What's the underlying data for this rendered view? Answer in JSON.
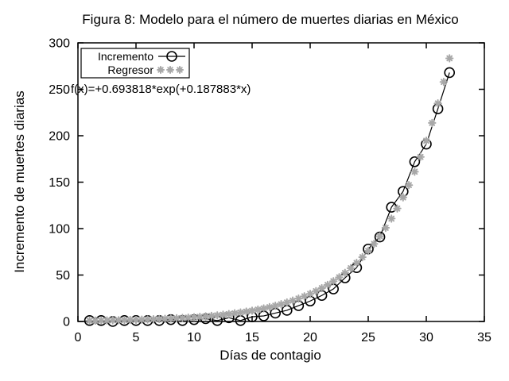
{
  "chart_data": {
    "type": "line",
    "title": "Figura 8: Modelo para el número de muertes diarias en México",
    "xlabel": "Días de contagio",
    "ylabel": "Incremento de muertes diarias",
    "xlim": [
      0,
      35
    ],
    "ylim": [
      0,
      300
    ],
    "xticks": [
      0,
      5,
      10,
      15,
      20,
      25,
      30,
      35
    ],
    "yticks": [
      0,
      50,
      100,
      150,
      200,
      250,
      300
    ],
    "grid": false,
    "legend_position": "top-left",
    "annotation": "f(x)=+0.693818*exp(+0.187883*x)",
    "colors": {
      "foreground": "#000000",
      "regressor": "#a8a8a8",
      "background": "#ffffff"
    },
    "series": [
      {
        "name": "Incremento",
        "style": "linespoints",
        "marker": "open-circle",
        "color": "#000000",
        "x": [
          1,
          2,
          3,
          4,
          5,
          6,
          7,
          8,
          9,
          10,
          11,
          12,
          13,
          14,
          15,
          16,
          17,
          18,
          19,
          20,
          21,
          22,
          23,
          24,
          25,
          26,
          27,
          28,
          29,
          30,
          31,
          32
        ],
        "y": [
          1,
          1,
          0,
          1,
          1,
          1,
          1,
          2,
          1,
          2,
          3,
          1,
          4,
          1,
          5,
          6,
          9,
          12,
          17,
          22,
          28,
          35,
          47,
          58,
          78,
          91,
          123,
          140,
          172,
          191,
          229,
          268
        ]
      },
      {
        "name": "Regresor",
        "style": "points",
        "marker": "asterisk",
        "color": "#a8a8a8",
        "model": {
          "formula": "f(x)=+0.693818*exp(+0.187883*x)",
          "a": 0.693818,
          "b": 0.187883,
          "x_start": 1,
          "x_end": 32,
          "x_step": 0.5
        }
      }
    ]
  }
}
